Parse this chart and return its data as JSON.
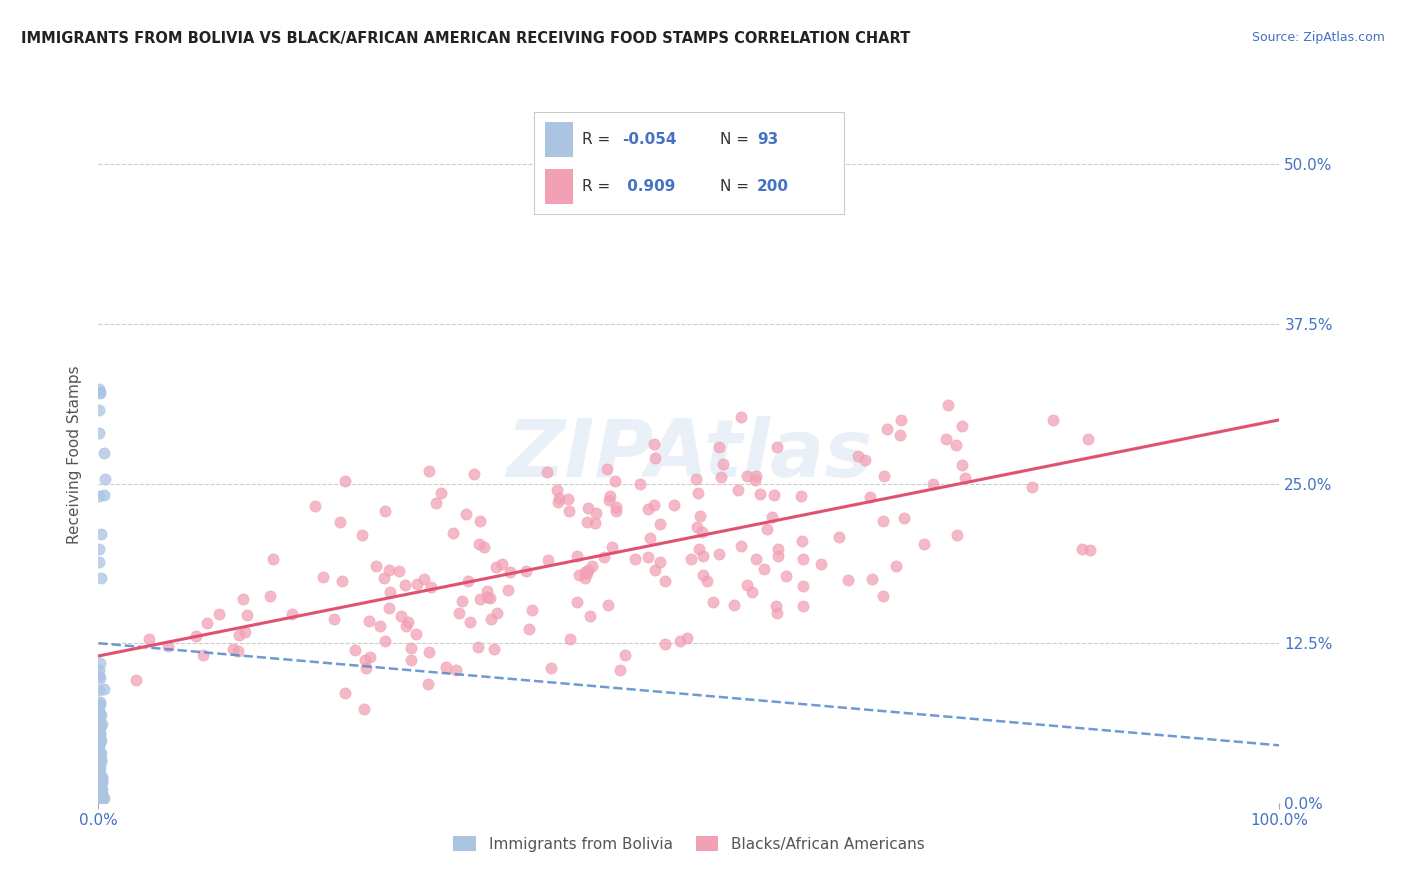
{
  "title": "IMMIGRANTS FROM BOLIVIA VS BLACK/AFRICAN AMERICAN RECEIVING FOOD STAMPS CORRELATION CHART",
  "source": "Source: ZipAtlas.com",
  "ylabel": "Receiving Food Stamps",
  "xlim": [
    0.0,
    1.0
  ],
  "ylim": [
    0.0,
    0.545
  ],
  "yticks": [
    0.0,
    0.125,
    0.25,
    0.375,
    0.5
  ],
  "ytick_labels_right": [
    "0.0%",
    "12.5%",
    "25.0%",
    "37.5%",
    "50.0%"
  ],
  "xticks": [
    0.0,
    1.0
  ],
  "xtick_labels": [
    "0.0%",
    "100.0%"
  ],
  "bolivia_R": -0.054,
  "bolivia_N": 93,
  "black_R": 0.909,
  "black_N": 200,
  "bolivia_color": "#aac4e2",
  "black_color": "#f2a0b4",
  "bolivia_line_color": "#5588cc",
  "black_line_color": "#e05070",
  "grid_color": "#cccccc",
  "background_color": "#ffffff",
  "watermark": "ZIPAtlas",
  "legend_label_bolivia": "Immigrants from Bolivia",
  "legend_label_black": "Blacks/African Americans",
  "title_color": "#222222",
  "axis_label_color": "#555555",
  "tick_color": "#4472c4",
  "legend_text_color": "#333333",
  "legend_value_color": "#4472c4"
}
